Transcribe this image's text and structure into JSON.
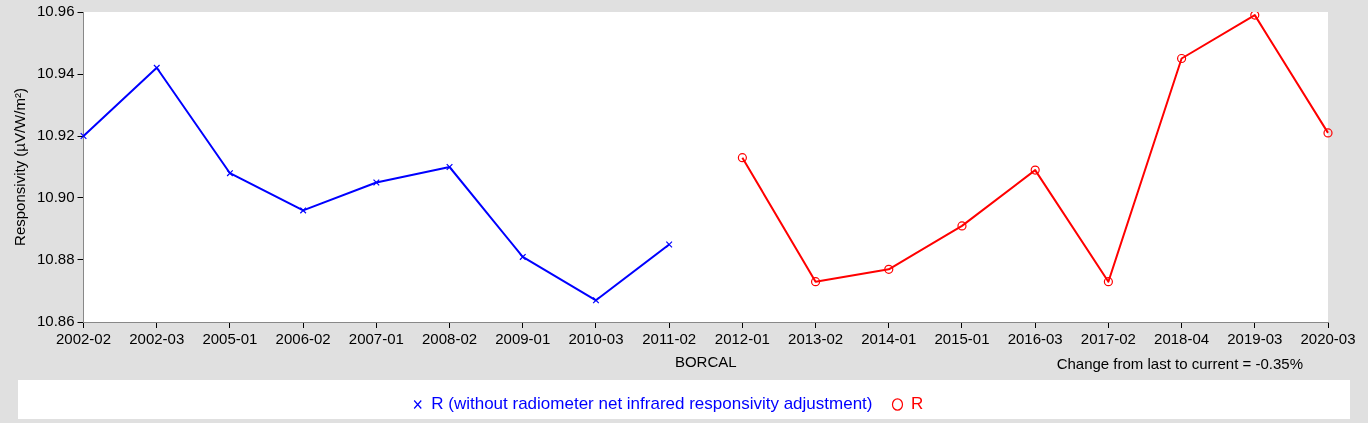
{
  "chart_data": {
    "type": "line",
    "xlabel": "BORCAL",
    "ylabel": "Responsivity (µV/W/m²)",
    "categories": [
      "2002-02",
      "2002-03",
      "2005-01",
      "2006-02",
      "2007-01",
      "2008-02",
      "2009-01",
      "2010-03",
      "2011-02",
      "2012-01",
      "2013-02",
      "2014-01",
      "2015-01",
      "2016-03",
      "2017-02",
      "2018-04",
      "2019-03",
      "2020-03"
    ],
    "series": [
      {
        "name": "R (without radiometer net infrared responsivity adjustment)",
        "color": "#0000ff",
        "marker": "cross",
        "values": [
          10.92,
          10.942,
          10.908,
          10.896,
          10.905,
          10.91,
          10.881,
          10.867,
          10.885,
          null,
          null,
          null,
          null,
          null,
          null,
          null,
          null,
          null
        ]
      },
      {
        "name": "R",
        "color": "#ff0000",
        "marker": "circle",
        "values": [
          null,
          null,
          null,
          null,
          null,
          null,
          null,
          null,
          null,
          10.913,
          10.873,
          10.877,
          10.891,
          10.909,
          10.873,
          10.945,
          10.959,
          10.921
        ]
      }
    ],
    "ylim": [
      10.86,
      10.96
    ],
    "yticks": [
      10.86,
      10.88,
      {
        "value": 10.9,
        "label": "10.90"
      },
      10.92,
      10.94,
      10.96
    ],
    "grid": false,
    "legend": "bottom",
    "line_style": "solid",
    "annotations": [
      "Change from last to current = -0.35%"
    ]
  }
}
